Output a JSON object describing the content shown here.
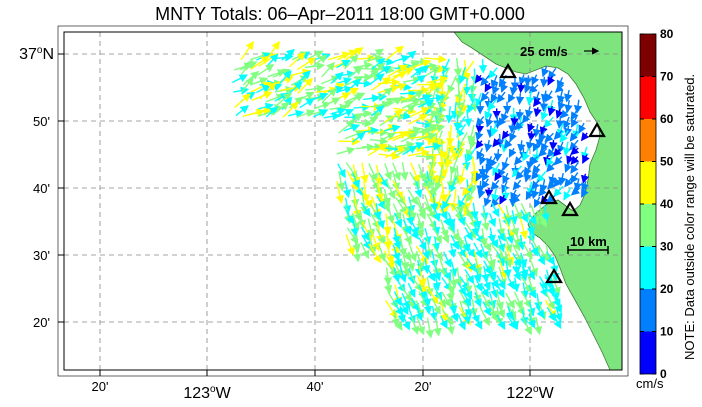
{
  "title": "MNTY Totals: 06–Apr–2011 18:00 GMT+0.000",
  "colors": {
    "land": "#7ee57e",
    "coast_shade": "#6fc86f",
    "grid": "#888888",
    "frame": "#000000"
  },
  "x_labels": [
    {
      "text": "20'",
      "big": false
    },
    {
      "text": "123",
      "deg": true,
      "suffix": "W",
      "big": true
    },
    {
      "text": "40'",
      "big": false
    },
    {
      "text": "20'",
      "big": false
    },
    {
      "text": "122",
      "deg": true,
      "suffix": "W",
      "big": true
    }
  ],
  "y_labels": [
    {
      "text": "37",
      "deg": true,
      "suffix": "N",
      "big": true
    },
    {
      "text": "50'",
      "big": false
    },
    {
      "text": "40'",
      "big": false
    },
    {
      "text": "30'",
      "big": false
    },
    {
      "text": "20'",
      "big": false
    }
  ],
  "scale": {
    "velocity_label": "25 cm/s",
    "distance_label": "10 km"
  },
  "colorbar": {
    "ticks": [
      "80",
      "70",
      "60",
      "50",
      "40",
      "30",
      "20",
      "10",
      "0"
    ],
    "unit": "cm/s",
    "note": "NOTE: Data outside color range will be saturated.",
    "colors": [
      "#7f0000",
      "#ff0000",
      "#ff8000",
      "#ffff00",
      "#80ff80",
      "#00ffff",
      "#0080ff",
      "#0000ff"
    ]
  },
  "sites": [
    {
      "name": "site-1"
    },
    {
      "name": "site-2"
    },
    {
      "name": "site-3"
    },
    {
      "name": "site-4"
    },
    {
      "name": "site-5"
    }
  ]
}
